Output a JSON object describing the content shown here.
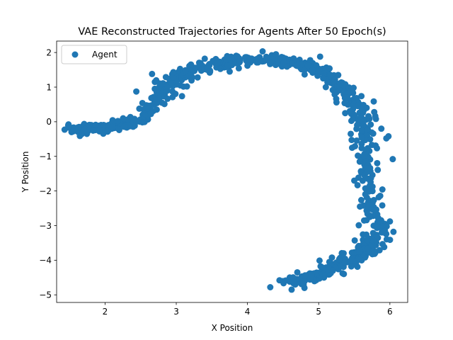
{
  "chart_data": {
    "type": "scatter",
    "title": "VAE Reconstructed Trajectories for Agents After 50 Epoch(s)",
    "xlabel": "X Position",
    "ylabel": "Y Position",
    "xlim": [
      1.32,
      6.25
    ],
    "ylim": [
      -5.22,
      2.33
    ],
    "xticks": [
      2,
      3,
      4,
      5,
      6
    ],
    "yticks": [
      -5,
      -4,
      -3,
      -2,
      -1,
      0,
      1,
      2
    ],
    "grid": false,
    "legend": {
      "position": "top-left",
      "entries": [
        "Agent"
      ]
    },
    "color": "#1f77b4",
    "series": [
      {
        "name": "Agent",
        "path": [
          [
            1.5,
            -0.18
          ],
          [
            1.7,
            -0.22
          ],
          [
            1.9,
            -0.2
          ],
          [
            2.1,
            -0.16
          ],
          [
            2.25,
            -0.1
          ],
          [
            2.4,
            -0.02
          ],
          [
            2.55,
            0.12
          ],
          [
            2.65,
            0.4
          ],
          [
            2.75,
            0.75
          ],
          [
            2.85,
            1.0
          ],
          [
            2.95,
            1.2
          ],
          [
            3.1,
            1.4
          ],
          [
            3.3,
            1.55
          ],
          [
            3.5,
            1.62
          ],
          [
            3.7,
            1.72
          ],
          [
            3.9,
            1.78
          ],
          [
            4.1,
            1.8
          ],
          [
            4.3,
            1.78
          ],
          [
            4.5,
            1.72
          ],
          [
            4.7,
            1.66
          ],
          [
            4.9,
            1.58
          ],
          [
            5.05,
            1.45
          ],
          [
            5.2,
            1.25
          ],
          [
            5.35,
            0.95
          ],
          [
            5.45,
            0.65
          ],
          [
            5.55,
            0.3
          ],
          [
            5.62,
            -0.1
          ],
          [
            5.65,
            -0.6
          ],
          [
            5.67,
            -1.2
          ],
          [
            5.7,
            -1.8
          ],
          [
            5.75,
            -2.4
          ],
          [
            5.82,
            -3.0
          ],
          [
            5.8,
            -3.4
          ],
          [
            5.7,
            -3.65
          ],
          [
            5.55,
            -3.85
          ],
          [
            5.35,
            -4.05
          ],
          [
            5.15,
            -4.25
          ],
          [
            4.95,
            -4.45
          ],
          [
            4.75,
            -4.58
          ],
          [
            4.55,
            -4.68
          ]
        ],
        "outliers": [
          [
            1.55,
            -0.28
          ],
          [
            1.75,
            -0.3
          ],
          [
            2.18,
            0.02
          ],
          [
            2.66,
            1.38
          ],
          [
            2.7,
            1.15
          ],
          [
            3.15,
            1.02
          ],
          [
            3.3,
            1.28
          ],
          [
            3.4,
            1.82
          ],
          [
            3.7,
            1.82
          ],
          [
            3.75,
            1.45
          ],
          [
            4.0,
            1.62
          ],
          [
            4.4,
            1.95
          ],
          [
            4.85,
            1.62
          ],
          [
            5.02,
            1.88
          ],
          [
            5.1,
            1.0
          ],
          [
            5.25,
            0.56
          ],
          [
            5.4,
            0.7
          ],
          [
            5.45,
            -0.35
          ],
          [
            5.48,
            0.08
          ],
          [
            5.6,
            0.74
          ],
          [
            5.78,
            0.28
          ],
          [
            5.88,
            -0.2
          ],
          [
            5.95,
            -0.48
          ],
          [
            5.98,
            -0.42
          ],
          [
            6.04,
            -1.08
          ],
          [
            5.55,
            -0.98
          ],
          [
            5.5,
            -1.7
          ],
          [
            5.58,
            -2.45
          ],
          [
            6.0,
            -2.88
          ],
          [
            6.05,
            -3.18
          ],
          [
            5.93,
            -3.15
          ],
          [
            5.92,
            -3.62
          ],
          [
            5.68,
            -3.42
          ],
          [
            5.35,
            -3.8
          ],
          [
            5.15,
            -4.05
          ],
          [
            4.9,
            -4.42
          ],
          [
            4.7,
            -4.35
          ],
          [
            4.8,
            -4.8
          ],
          [
            4.62,
            -4.85
          ],
          [
            4.32,
            -4.78
          ],
          [
            4.45,
            -4.58
          ],
          [
            5.2,
            -4.3
          ]
        ]
      }
    ]
  }
}
